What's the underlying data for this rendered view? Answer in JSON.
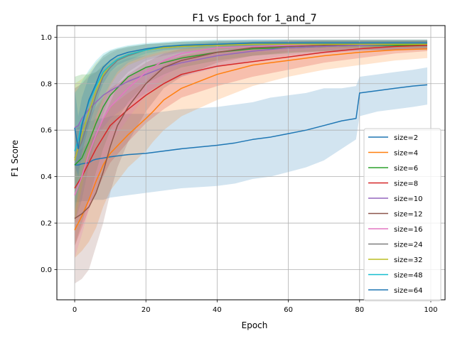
{
  "chart_data": {
    "type": "line",
    "title": "F1 vs Epoch for 1_and_7",
    "xlabel": "Epoch",
    "ylabel": "F1 Score",
    "xlim": [
      -5,
      104
    ],
    "ylim": [
      -0.13,
      1.05
    ],
    "xticks": [
      0,
      20,
      40,
      60,
      80,
      100
    ],
    "yticks": [
      0.0,
      0.2,
      0.4,
      0.6,
      0.8,
      1.0
    ],
    "xtick_labels": [
      "0",
      "20",
      "40",
      "60",
      "80",
      "100"
    ],
    "ytick_labels": [
      "0.0",
      "0.2",
      "0.4",
      "0.6",
      "0.8",
      "1.0"
    ],
    "grid": true,
    "legend_position": "lower-right",
    "shaded_band": "spread",
    "series": [
      {
        "name": "size=2",
        "color": "#1f77b4",
        "x": [
          0,
          1,
          2,
          4,
          5,
          6,
          8,
          10,
          15,
          20,
          25,
          30,
          40,
          45,
          50,
          55,
          60,
          65,
          70,
          75,
          79,
          80,
          85,
          90,
          95,
          99
        ],
        "y": [
          0.45,
          0.45,
          0.455,
          0.46,
          0.47,
          0.475,
          0.48,
          0.485,
          0.495,
          0.5,
          0.51,
          0.52,
          0.535,
          0.545,
          0.56,
          0.57,
          0.585,
          0.6,
          0.62,
          0.64,
          0.65,
          0.76,
          0.77,
          0.78,
          0.79,
          0.795
        ],
        "lo": [
          0.29,
          0.29,
          0.295,
          0.295,
          0.3,
          0.3,
          0.3,
          0.31,
          0.32,
          0.33,
          0.34,
          0.35,
          0.36,
          0.37,
          0.39,
          0.4,
          0.42,
          0.44,
          0.47,
          0.52,
          0.56,
          0.66,
          0.68,
          0.69,
          0.7,
          0.71
        ],
        "hi": [
          0.6,
          0.62,
          0.63,
          0.64,
          0.64,
          0.65,
          0.65,
          0.66,
          0.67,
          0.67,
          0.68,
          0.69,
          0.7,
          0.71,
          0.72,
          0.74,
          0.75,
          0.76,
          0.78,
          0.78,
          0.79,
          0.83,
          0.84,
          0.85,
          0.86,
          0.87
        ]
      },
      {
        "name": "size=4",
        "color": "#ff7f0e",
        "x": [
          0,
          2,
          4,
          6,
          8,
          10,
          15,
          20,
          22,
          25,
          30,
          40,
          50,
          60,
          70,
          80,
          90,
          99
        ],
        "y": [
          0.17,
          0.23,
          0.3,
          0.38,
          0.45,
          0.5,
          0.58,
          0.65,
          0.68,
          0.73,
          0.78,
          0.84,
          0.88,
          0.9,
          0.92,
          0.935,
          0.945,
          0.95
        ],
        "lo": [
          0.05,
          0.08,
          0.12,
          0.18,
          0.27,
          0.34,
          0.44,
          0.51,
          0.55,
          0.6,
          0.66,
          0.73,
          0.79,
          0.83,
          0.86,
          0.88,
          0.9,
          0.91
        ],
        "hi": [
          0.3,
          0.42,
          0.52,
          0.6,
          0.65,
          0.7,
          0.76,
          0.81,
          0.84,
          0.88,
          0.92,
          0.96,
          0.98,
          0.99,
          0.99,
          0.99,
          0.99,
          0.99
        ]
      },
      {
        "name": "size=6",
        "color": "#2ca02c",
        "x": [
          0,
          2,
          4,
          6,
          8,
          10,
          15,
          20,
          25,
          30,
          40,
          50,
          60,
          70,
          80,
          90,
          99
        ],
        "y": [
          0.45,
          0.48,
          0.55,
          0.63,
          0.7,
          0.75,
          0.83,
          0.87,
          0.89,
          0.91,
          0.935,
          0.95,
          0.955,
          0.96,
          0.965,
          0.965,
          0.965
        ],
        "lo": [
          0.1,
          0.2,
          0.3,
          0.42,
          0.52,
          0.6,
          0.72,
          0.8,
          0.84,
          0.87,
          0.9,
          0.92,
          0.93,
          0.94,
          0.945,
          0.945,
          0.945
        ],
        "hi": [
          0.83,
          0.84,
          0.84,
          0.85,
          0.88,
          0.9,
          0.93,
          0.95,
          0.96,
          0.97,
          0.98,
          0.98,
          0.98,
          0.985,
          0.985,
          0.985,
          0.985
        ]
      },
      {
        "name": "size=8",
        "color": "#d62728",
        "x": [
          0,
          2,
          4,
          6,
          8,
          10,
          15,
          20,
          25,
          30,
          40,
          50,
          60,
          70,
          80,
          90,
          99
        ],
        "y": [
          0.35,
          0.4,
          0.46,
          0.52,
          0.57,
          0.62,
          0.69,
          0.75,
          0.8,
          0.84,
          0.875,
          0.895,
          0.915,
          0.935,
          0.95,
          0.96,
          0.965
        ],
        "lo": [
          0.1,
          0.18,
          0.26,
          0.33,
          0.4,
          0.46,
          0.55,
          0.63,
          0.69,
          0.74,
          0.79,
          0.83,
          0.86,
          0.89,
          0.91,
          0.93,
          0.94
        ],
        "hi": [
          0.6,
          0.62,
          0.66,
          0.7,
          0.74,
          0.78,
          0.83,
          0.87,
          0.9,
          0.92,
          0.94,
          0.95,
          0.96,
          0.97,
          0.975,
          0.98,
          0.985
        ]
      },
      {
        "name": "size=10",
        "color": "#9467bd",
        "x": [
          0,
          1,
          2,
          4,
          6,
          8,
          10,
          15,
          20,
          25,
          30,
          40,
          50,
          60,
          70,
          80,
          90,
          99
        ],
        "y": [
          0.61,
          0.62,
          0.65,
          0.69,
          0.72,
          0.75,
          0.77,
          0.81,
          0.84,
          0.87,
          0.89,
          0.92,
          0.94,
          0.955,
          0.96,
          0.965,
          0.97,
          0.97
        ],
        "lo": [
          0.4,
          0.43,
          0.47,
          0.52,
          0.57,
          0.61,
          0.65,
          0.71,
          0.76,
          0.8,
          0.83,
          0.87,
          0.9,
          0.92,
          0.93,
          0.94,
          0.945,
          0.95
        ],
        "hi": [
          0.78,
          0.79,
          0.8,
          0.83,
          0.85,
          0.87,
          0.88,
          0.91,
          0.92,
          0.94,
          0.95,
          0.96,
          0.975,
          0.98,
          0.985,
          0.985,
          0.985,
          0.985
        ]
      },
      {
        "name": "size=12",
        "color": "#8c564b",
        "x": [
          0,
          2,
          4,
          5,
          6,
          8,
          10,
          12,
          15,
          20,
          25,
          30,
          40,
          50,
          60,
          70,
          80,
          90,
          99
        ],
        "y": [
          0.22,
          0.24,
          0.27,
          0.3,
          0.33,
          0.42,
          0.53,
          0.62,
          0.7,
          0.8,
          0.87,
          0.9,
          0.935,
          0.955,
          0.96,
          0.965,
          0.97,
          0.97,
          0.97
        ],
        "lo": [
          -0.06,
          -0.04,
          0.0,
          0.05,
          0.1,
          0.2,
          0.33,
          0.44,
          0.55,
          0.68,
          0.78,
          0.83,
          0.89,
          0.92,
          0.935,
          0.94,
          0.945,
          0.945,
          0.95
        ],
        "hi": [
          0.5,
          0.52,
          0.55,
          0.57,
          0.58,
          0.65,
          0.72,
          0.79,
          0.84,
          0.89,
          0.93,
          0.95,
          0.97,
          0.98,
          0.985,
          0.985,
          0.985,
          0.985,
          0.985
        ]
      },
      {
        "name": "size=16",
        "color": "#e377c2",
        "x": [
          0,
          2,
          4,
          6,
          8,
          10,
          15,
          20,
          25,
          30,
          40,
          50,
          60,
          70,
          80,
          90,
          99
        ],
        "y": [
          0.32,
          0.4,
          0.5,
          0.58,
          0.65,
          0.7,
          0.78,
          0.85,
          0.9,
          0.93,
          0.955,
          0.96,
          0.965,
          0.97,
          0.97,
          0.97,
          0.97
        ],
        "lo": [
          0.05,
          0.15,
          0.26,
          0.36,
          0.46,
          0.54,
          0.65,
          0.75,
          0.83,
          0.88,
          0.92,
          0.935,
          0.94,
          0.945,
          0.95,
          0.95,
          0.95
        ],
        "hi": [
          0.6,
          0.65,
          0.72,
          0.78,
          0.82,
          0.85,
          0.9,
          0.93,
          0.95,
          0.97,
          0.98,
          0.985,
          0.985,
          0.985,
          0.985,
          0.985,
          0.985
        ]
      },
      {
        "name": "size=24",
        "color": "#7f7f7f",
        "x": [
          0,
          2,
          4,
          6,
          8,
          10,
          12,
          15,
          20,
          25,
          30,
          40,
          50,
          60,
          70,
          80,
          90,
          99
        ],
        "y": [
          0.48,
          0.55,
          0.65,
          0.75,
          0.83,
          0.87,
          0.9,
          0.92,
          0.945,
          0.955,
          0.96,
          0.965,
          0.97,
          0.97,
          0.97,
          0.97,
          0.97,
          0.97
        ],
        "lo": [
          0.2,
          0.3,
          0.45,
          0.57,
          0.67,
          0.75,
          0.8,
          0.85,
          0.9,
          0.92,
          0.935,
          0.945,
          0.95,
          0.95,
          0.955,
          0.955,
          0.955,
          0.955
        ],
        "hi": [
          0.78,
          0.8,
          0.84,
          0.88,
          0.91,
          0.93,
          0.945,
          0.955,
          0.97,
          0.975,
          0.98,
          0.985,
          0.985,
          0.985,
          0.985,
          0.985,
          0.985,
          0.985
        ]
      },
      {
        "name": "size=32",
        "color": "#bcbd22",
        "x": [
          0,
          2,
          4,
          6,
          8,
          10,
          12,
          15,
          20,
          25,
          30,
          40,
          50,
          60,
          70,
          80,
          90,
          99
        ],
        "y": [
          0.47,
          0.58,
          0.68,
          0.77,
          0.84,
          0.88,
          0.905,
          0.925,
          0.945,
          0.955,
          0.96,
          0.965,
          0.97,
          0.97,
          0.97,
          0.97,
          0.97,
          0.97
        ],
        "lo": [
          0.2,
          0.35,
          0.5,
          0.62,
          0.72,
          0.79,
          0.84,
          0.88,
          0.91,
          0.93,
          0.94,
          0.95,
          0.955,
          0.955,
          0.955,
          0.955,
          0.955,
          0.955
        ],
        "hi": [
          0.8,
          0.82,
          0.85,
          0.89,
          0.92,
          0.94,
          0.95,
          0.96,
          0.97,
          0.975,
          0.98,
          0.985,
          0.985,
          0.985,
          0.985,
          0.985,
          0.985,
          0.985
        ]
      },
      {
        "name": "size=48",
        "color": "#17becf",
        "x": [
          0,
          1,
          2,
          4,
          6,
          8,
          10,
          12,
          15,
          20,
          25,
          30,
          40,
          50,
          60,
          70,
          80,
          90,
          99
        ],
        "y": [
          0.51,
          0.56,
          0.63,
          0.72,
          0.79,
          0.85,
          0.88,
          0.905,
          0.925,
          0.945,
          0.96,
          0.965,
          0.97,
          0.975,
          0.975,
          0.975,
          0.975,
          0.975,
          0.975
        ],
        "lo": [
          0.25,
          0.33,
          0.42,
          0.55,
          0.66,
          0.74,
          0.8,
          0.85,
          0.89,
          0.92,
          0.94,
          0.95,
          0.955,
          0.96,
          0.96,
          0.96,
          0.96,
          0.96,
          0.96
        ],
        "hi": [
          0.76,
          0.78,
          0.81,
          0.86,
          0.9,
          0.93,
          0.945,
          0.955,
          0.965,
          0.975,
          0.98,
          0.985,
          0.99,
          0.99,
          0.99,
          0.99,
          0.99,
          0.99,
          0.99
        ]
      },
      {
        "name": "size=64",
        "color": "#1f77b4",
        "x": [
          0,
          1,
          2,
          4,
          6,
          7,
          8,
          10,
          12,
          15,
          20,
          25,
          30,
          40,
          50,
          60,
          70,
          80,
          90,
          99
        ],
        "y": [
          0.61,
          0.52,
          0.62,
          0.73,
          0.8,
          0.84,
          0.87,
          0.9,
          0.92,
          0.935,
          0.95,
          0.96,
          0.965,
          0.97,
          0.975,
          0.975,
          0.975,
          0.975,
          0.975,
          0.975
        ],
        "lo": [
          0.45,
          0.4,
          0.5,
          0.62,
          0.71,
          0.76,
          0.8,
          0.85,
          0.88,
          0.9,
          0.93,
          0.945,
          0.95,
          0.96,
          0.96,
          0.96,
          0.96,
          0.96,
          0.96,
          0.96
        ],
        "hi": [
          0.78,
          0.66,
          0.74,
          0.83,
          0.88,
          0.9,
          0.92,
          0.94,
          0.95,
          0.96,
          0.97,
          0.975,
          0.98,
          0.985,
          0.99,
          0.99,
          0.99,
          0.99,
          0.99,
          0.99
        ]
      }
    ]
  }
}
